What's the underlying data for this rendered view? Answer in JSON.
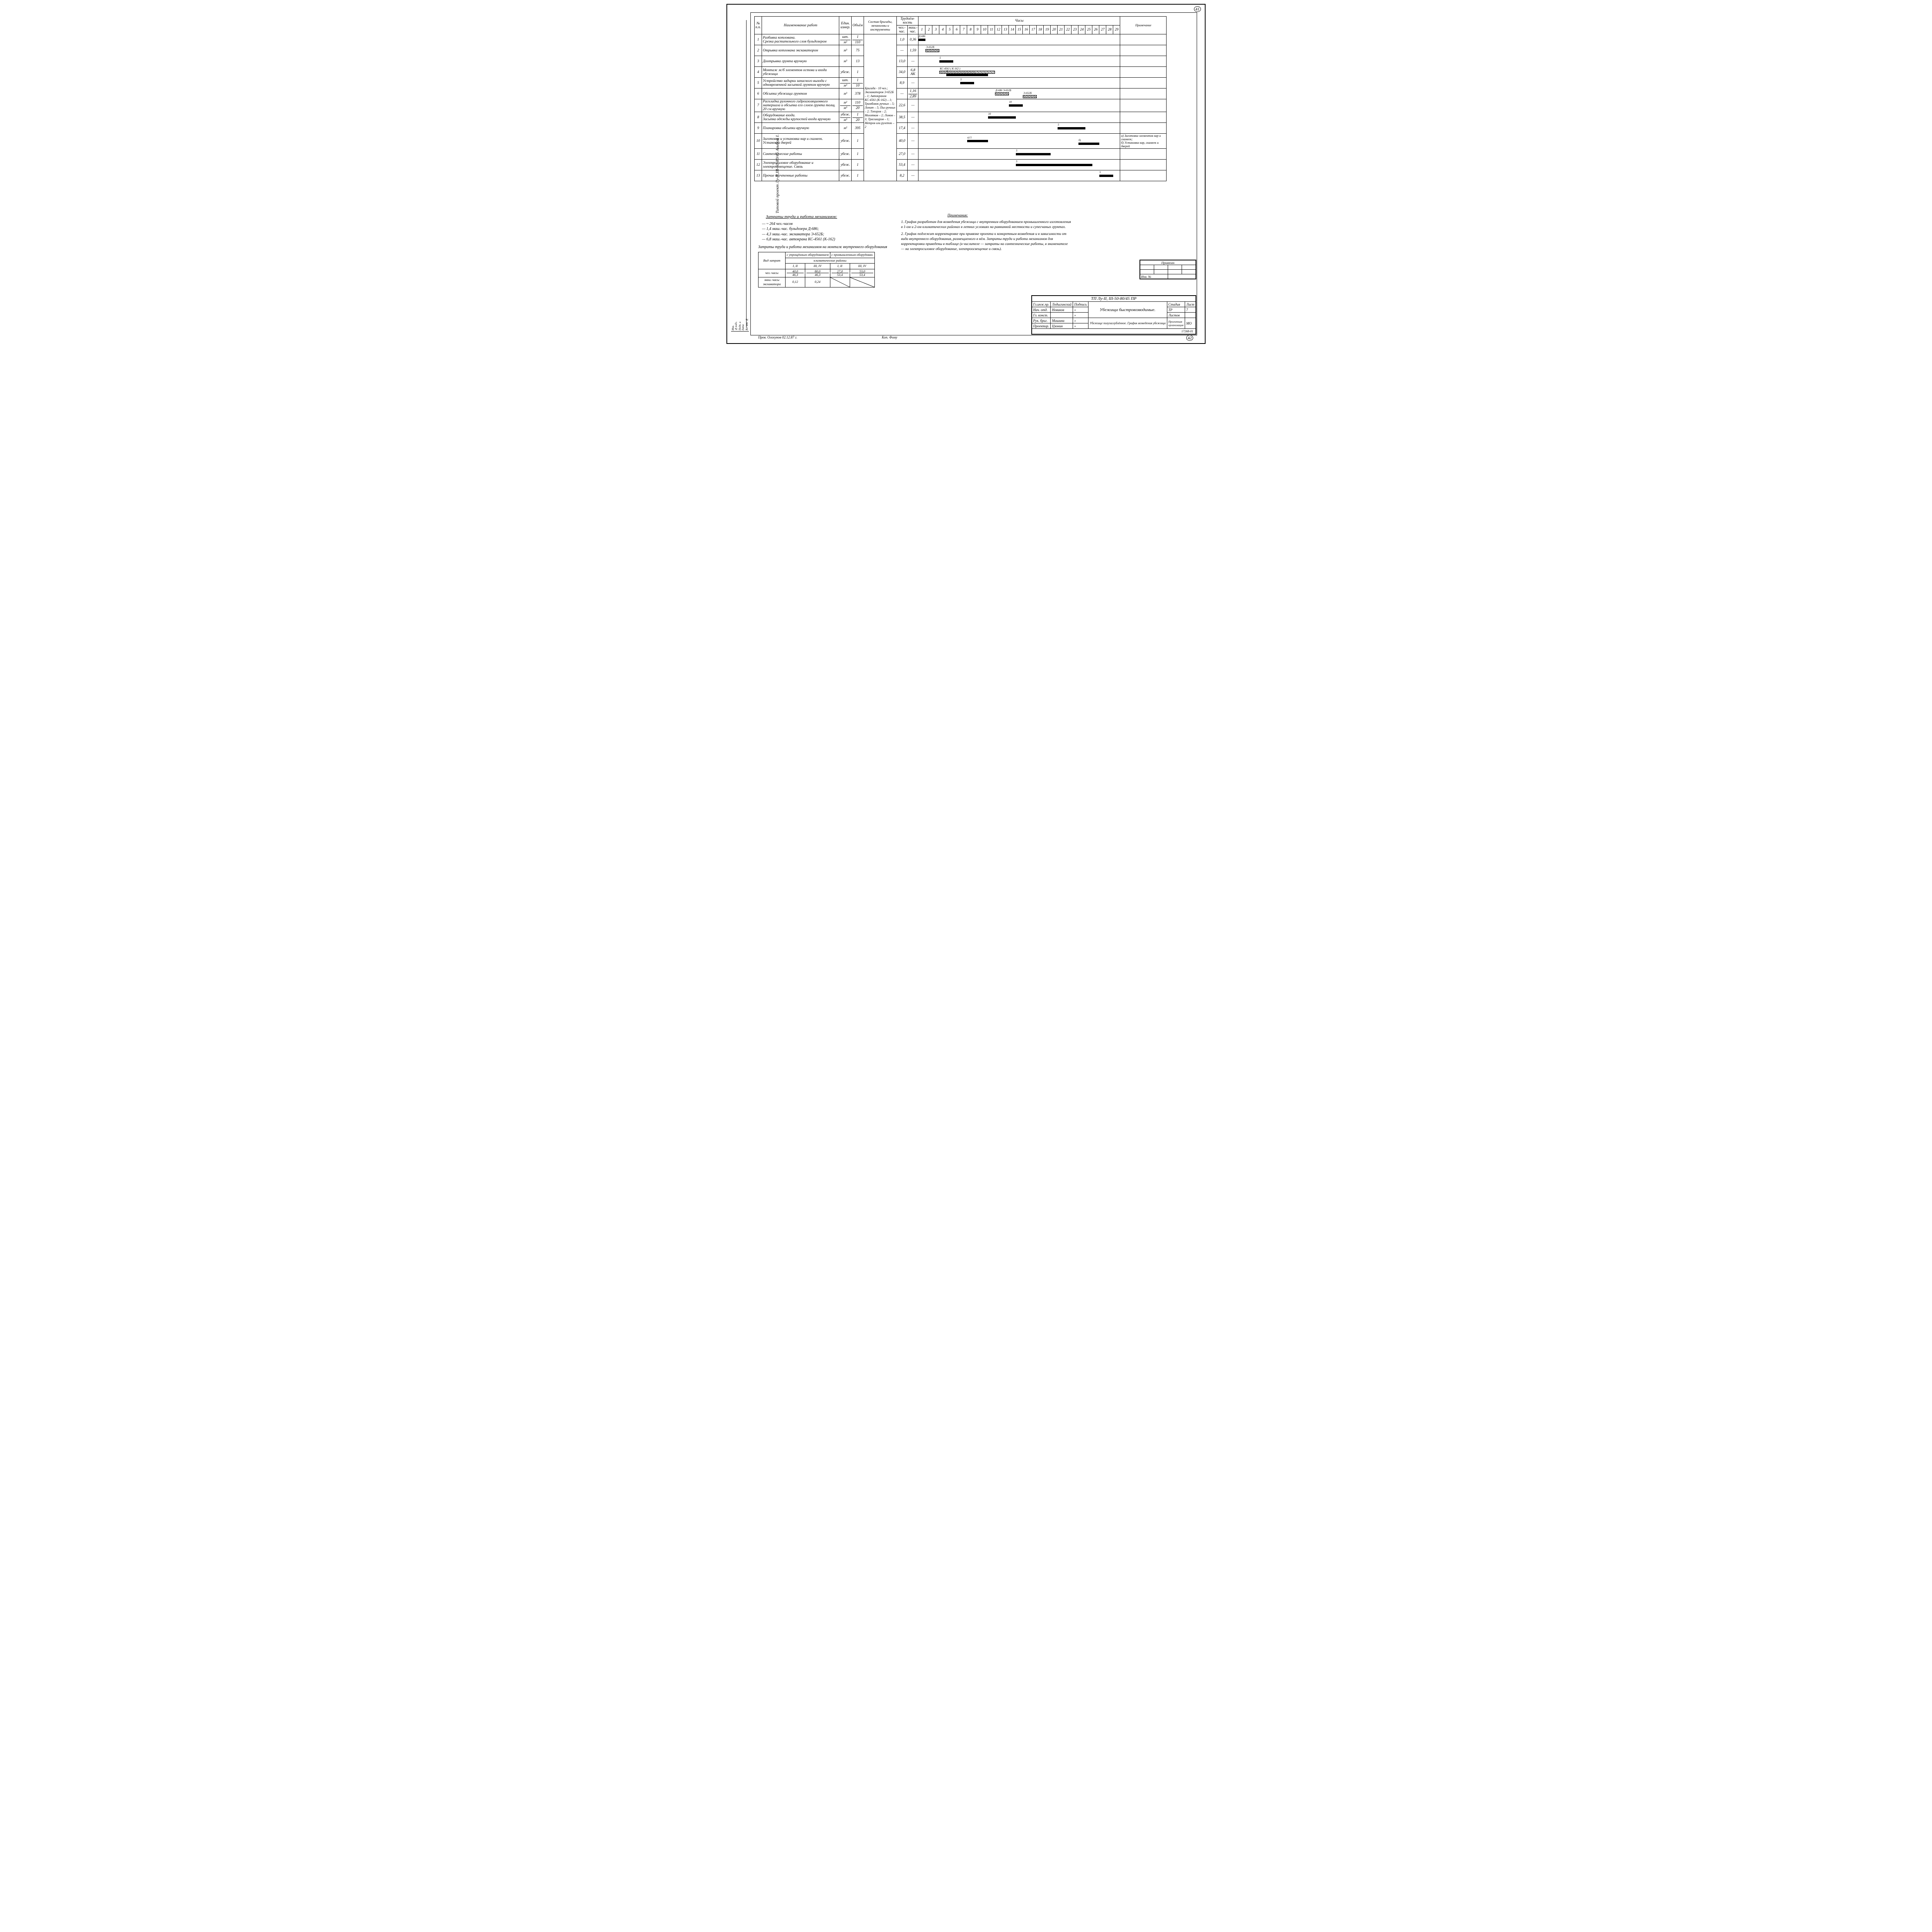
{
  "page_number_top": "41",
  "page_number_bottom": "42",
  "left_vertical_text": "Типовой   проект   Лу-II,III-50-80/45    Альбом I.",
  "left_box_labels": [
    "Инв.№подл.",
    "Подп. и дата",
    "Вз. инв. №"
  ],
  "schedule": {
    "header": {
      "num": "№ п.п.",
      "name": "Наименование   работ",
      "unit": "Един. измер.",
      "vol": "Объём",
      "crew": "Состав бригады, механизмы и инструменты",
      "labor": "Трудоём-кость",
      "labor_sub1": "чел.-час.",
      "labor_sub2": "маш.-час.",
      "hours": "Часы",
      "note": "Примечание"
    },
    "hour_labels": [
      "1",
      "2",
      "3",
      "4",
      "5",
      "6",
      "7",
      "8",
      "9",
      "10",
      "11",
      "12",
      "13",
      "14",
      "15",
      "16",
      "17",
      "18",
      "19",
      "20",
      "21",
      "22",
      "23",
      "24",
      "25",
      "26",
      "27",
      "28",
      "29"
    ],
    "crew_text": "Бригада - 10 чел.; Экскаваторов Э-652Б – 1; Автокранов КС-4561 (К-162) – 1; Трамбовок ручных – 5; Лопат – 5; Пил ручных – 2; Топоров – 2; Молотков – 2; Ломов – 3; Трасшнуров – 1; Метров или рулеток – 2",
    "rows": [
      {
        "n": "1",
        "name": "Разбивка котлована.\nСрезка растительного слоя бульдозером",
        "unit_top": "шт.",
        "unit_bot": "м²",
        "vol_top": "1",
        "vol_bot": "110",
        "h1": "1,0",
        "h2": "0,36",
        "bar": {
          "from": 1,
          "to": 2,
          "label": "Д-686"
        }
      },
      {
        "n": "2",
        "name": "Отрывка котлована экскаватором",
        "unit": "м³",
        "vol": "75",
        "h1": "—",
        "h2": "1,59",
        "bar": {
          "from": 2,
          "to": 4,
          "label": "Э-652Б",
          "hatched": true
        }
      },
      {
        "n": "3",
        "name": "Доотрывка грунта вручную",
        "unit": "м³",
        "vol": "13",
        "h1": "13,0",
        "h2": "—",
        "bar": {
          "from": 4,
          "to": 6,
          "label": "5"
        }
      },
      {
        "n": "4",
        "name": "Монтаж ж/б элементов остова и входа убежища",
        "unit": "убеж.",
        "vol": "1",
        "h1": "34,0",
        "h2": "6,8 АК",
        "bar": {
          "from": 4,
          "to": 12,
          "label": "КС-4561 ( К-162 )",
          "hatched": true
        },
        "bar2": {
          "from": 5,
          "to": 11,
          "label": "5"
        }
      },
      {
        "n": "5",
        "name": "Устройство задирки запасного выхода с одновременной засыпкой грунтом вручную",
        "unit_top": "шт.",
        "unit_bot": "м³",
        "vol_top": "1",
        "vol_bot": "10",
        "h1": "8,9",
        "h2": "—",
        "bar": {
          "from": 7,
          "to": 9,
          "label": "5"
        }
      },
      {
        "n": "6",
        "name": "Обсыпка убежища грунтом",
        "unit": "м³",
        "vol": "378",
        "h1": "—",
        "h2_top": "1,16",
        "h2_bot": "2,89",
        "bar": {
          "from": 12,
          "to": 14,
          "label": "Д-686  Э-652Б",
          "hatched": true
        },
        "bar2": {
          "from": 16,
          "to": 18,
          "label": "Э-652Б",
          "hatched": true
        }
      },
      {
        "n": "7",
        "name": "Раскладка рулонного гидроизоляционного материала и обсыпка его слоем грунта толщ. 20 см вручную",
        "unit_top": "м²",
        "unit_bot": "м³",
        "vol_top": "110",
        "vol_bot": "20",
        "h1": "22,6",
        "h2": "—",
        "bar": {
          "from": 14,
          "to": 16,
          "label": "10"
        }
      },
      {
        "n": "8",
        "name": "Оборудование входа.\nЗасыпка  одежды  крупостей входа вручную",
        "unit_top": "убеж.",
        "unit_bot": "м³",
        "vol_top": "1",
        "vol_bot": "20",
        "h1": "38,5",
        "h2": "—",
        "bar": {
          "from": 11,
          "to": 15,
          "label": "10"
        }
      },
      {
        "n": "9",
        "name": "Планировка обсыпки вручную",
        "unit": "м²",
        "vol": "395",
        "h1": "17,4",
        "h2": "—",
        "bar": {
          "from": 21,
          "to": 25,
          "label": "5"
        }
      },
      {
        "n": "10",
        "name": "Заготовка и установка нар и скамеек.\nУстановка дверей",
        "unit": "убеж.",
        "vol": "1",
        "h1": "40,0",
        "h2": "—",
        "bar": {
          "from": 8,
          "to": 11,
          "label": "а)   5"
        },
        "bar2": {
          "from": 24,
          "to": 27,
          "label": "б)"
        },
        "note": "а) Заготовка элементов нар и скамеек;\nб) Установка нар, скамеек и дверей"
      },
      {
        "n": "11",
        "name": "Сантехнические работы",
        "unit": "убеж.",
        "vol": "1",
        "h1": "27,0",
        "h2": "—",
        "bar": {
          "from": 15,
          "to": 20,
          "label": "5"
        }
      },
      {
        "n": "12",
        "name": "Электросиловое оборудование и электроосвещение. Связь",
        "unit": "убеж.",
        "vol": "1",
        "h1": "53,4",
        "h2": "—",
        "bar": {
          "from": 15,
          "to": 26,
          "label": "5"
        }
      },
      {
        "n": "13",
        "name": "Прочие неучтенные работы",
        "unit": "убеж.",
        "vol": "1",
        "h1": "8,2",
        "h2": "—",
        "bar": {
          "from": 27,
          "to": 29,
          "label": "5"
        }
      }
    ]
  },
  "costs": {
    "title": "Затраты труда и работа механизмов:",
    "lines": [
      "— ~ 264 чел.-часов",
      "—   1,4 маш.-час. бульдозера Д-686;",
      "—   4,3 маш.-час. экскаватора Э-652Б;",
      "—   6,8 маш.-час. автокрана КС-4561 (К-162)"
    ],
    "subtitle": "Затраты труда и работа механизмов на монтаж внутреннего оборудования"
  },
  "mini": {
    "row_hdr": "Вид затрат",
    "col1": "с упрощённым оборудованием",
    "col2": "с промышленным оборудован.",
    "sub": "климатические районы",
    "zones": [
      "I, II",
      "III, IV",
      "I, II",
      "III, IV"
    ],
    "r1_label": "чел.-часы",
    "r1": [
      [
        "40,0",
        "46,3"
      ],
      [
        "80,0",
        "46,3"
      ],
      [
        "27,0",
        "53,4"
      ],
      [
        "53,0",
        "53,4"
      ]
    ],
    "r2_label": "маш.-часы экскаватора",
    "r2": [
      "0,12",
      "0,24",
      "",
      ""
    ]
  },
  "notes": {
    "title": "Примечания:",
    "items": [
      "1. График разработан для возведения убежища с внутренним оборудованием промышленного изготовления в 1-ом и 2-ом климатических районах в летних условиях на равнинной местности и супесчаных грунтах.",
      "2. График подлежит корректировке при привязке проекта к конкретным возведения и в зависимости от вида внутреннего оборудования, размещаемого в нём. Затраты труда и работа механизмов для корректировки приведены в таблице (в числителе — затраты на сантехнические работы, в знаменателе — на электросиловое оборудование, электроосвещение и связь)."
    ]
  },
  "priv": {
    "title": "Привязан",
    "inv": "Инв. №"
  },
  "titleblock": {
    "code": "ТП Лу-II, III-50-80/45 ПР",
    "roles": [
      [
        "Гл.инж.пр.",
        "Лодыгинский",
        "Подпись"
      ],
      [
        "Нач. отд.",
        "Новиков",
        "»"
      ],
      [
        "Гл. конст.",
        "",
        "»"
      ],
      [
        "Рук. бриг.",
        "Мишина",
        "»"
      ],
      [
        "Проектир.",
        "Цзонин",
        "»"
      ]
    ],
    "title1": "Убежища быстровозводимые.",
    "title2": "Убежище полузаглублённое. График возведения убежища",
    "stage_hdr": "Стадия",
    "stage": "ТР",
    "sheet_hdr": "Лист",
    "sheet": "7",
    "sheets_hdr": "Листов",
    "sheets": "",
    "org_hdr": "Проектная организация",
    "org": "МО",
    "bottom_code": "17268-01"
  },
  "foot_left": "Пров. Олохунов 02.12.87 г.",
  "foot_mid": "Коп. Фому"
}
